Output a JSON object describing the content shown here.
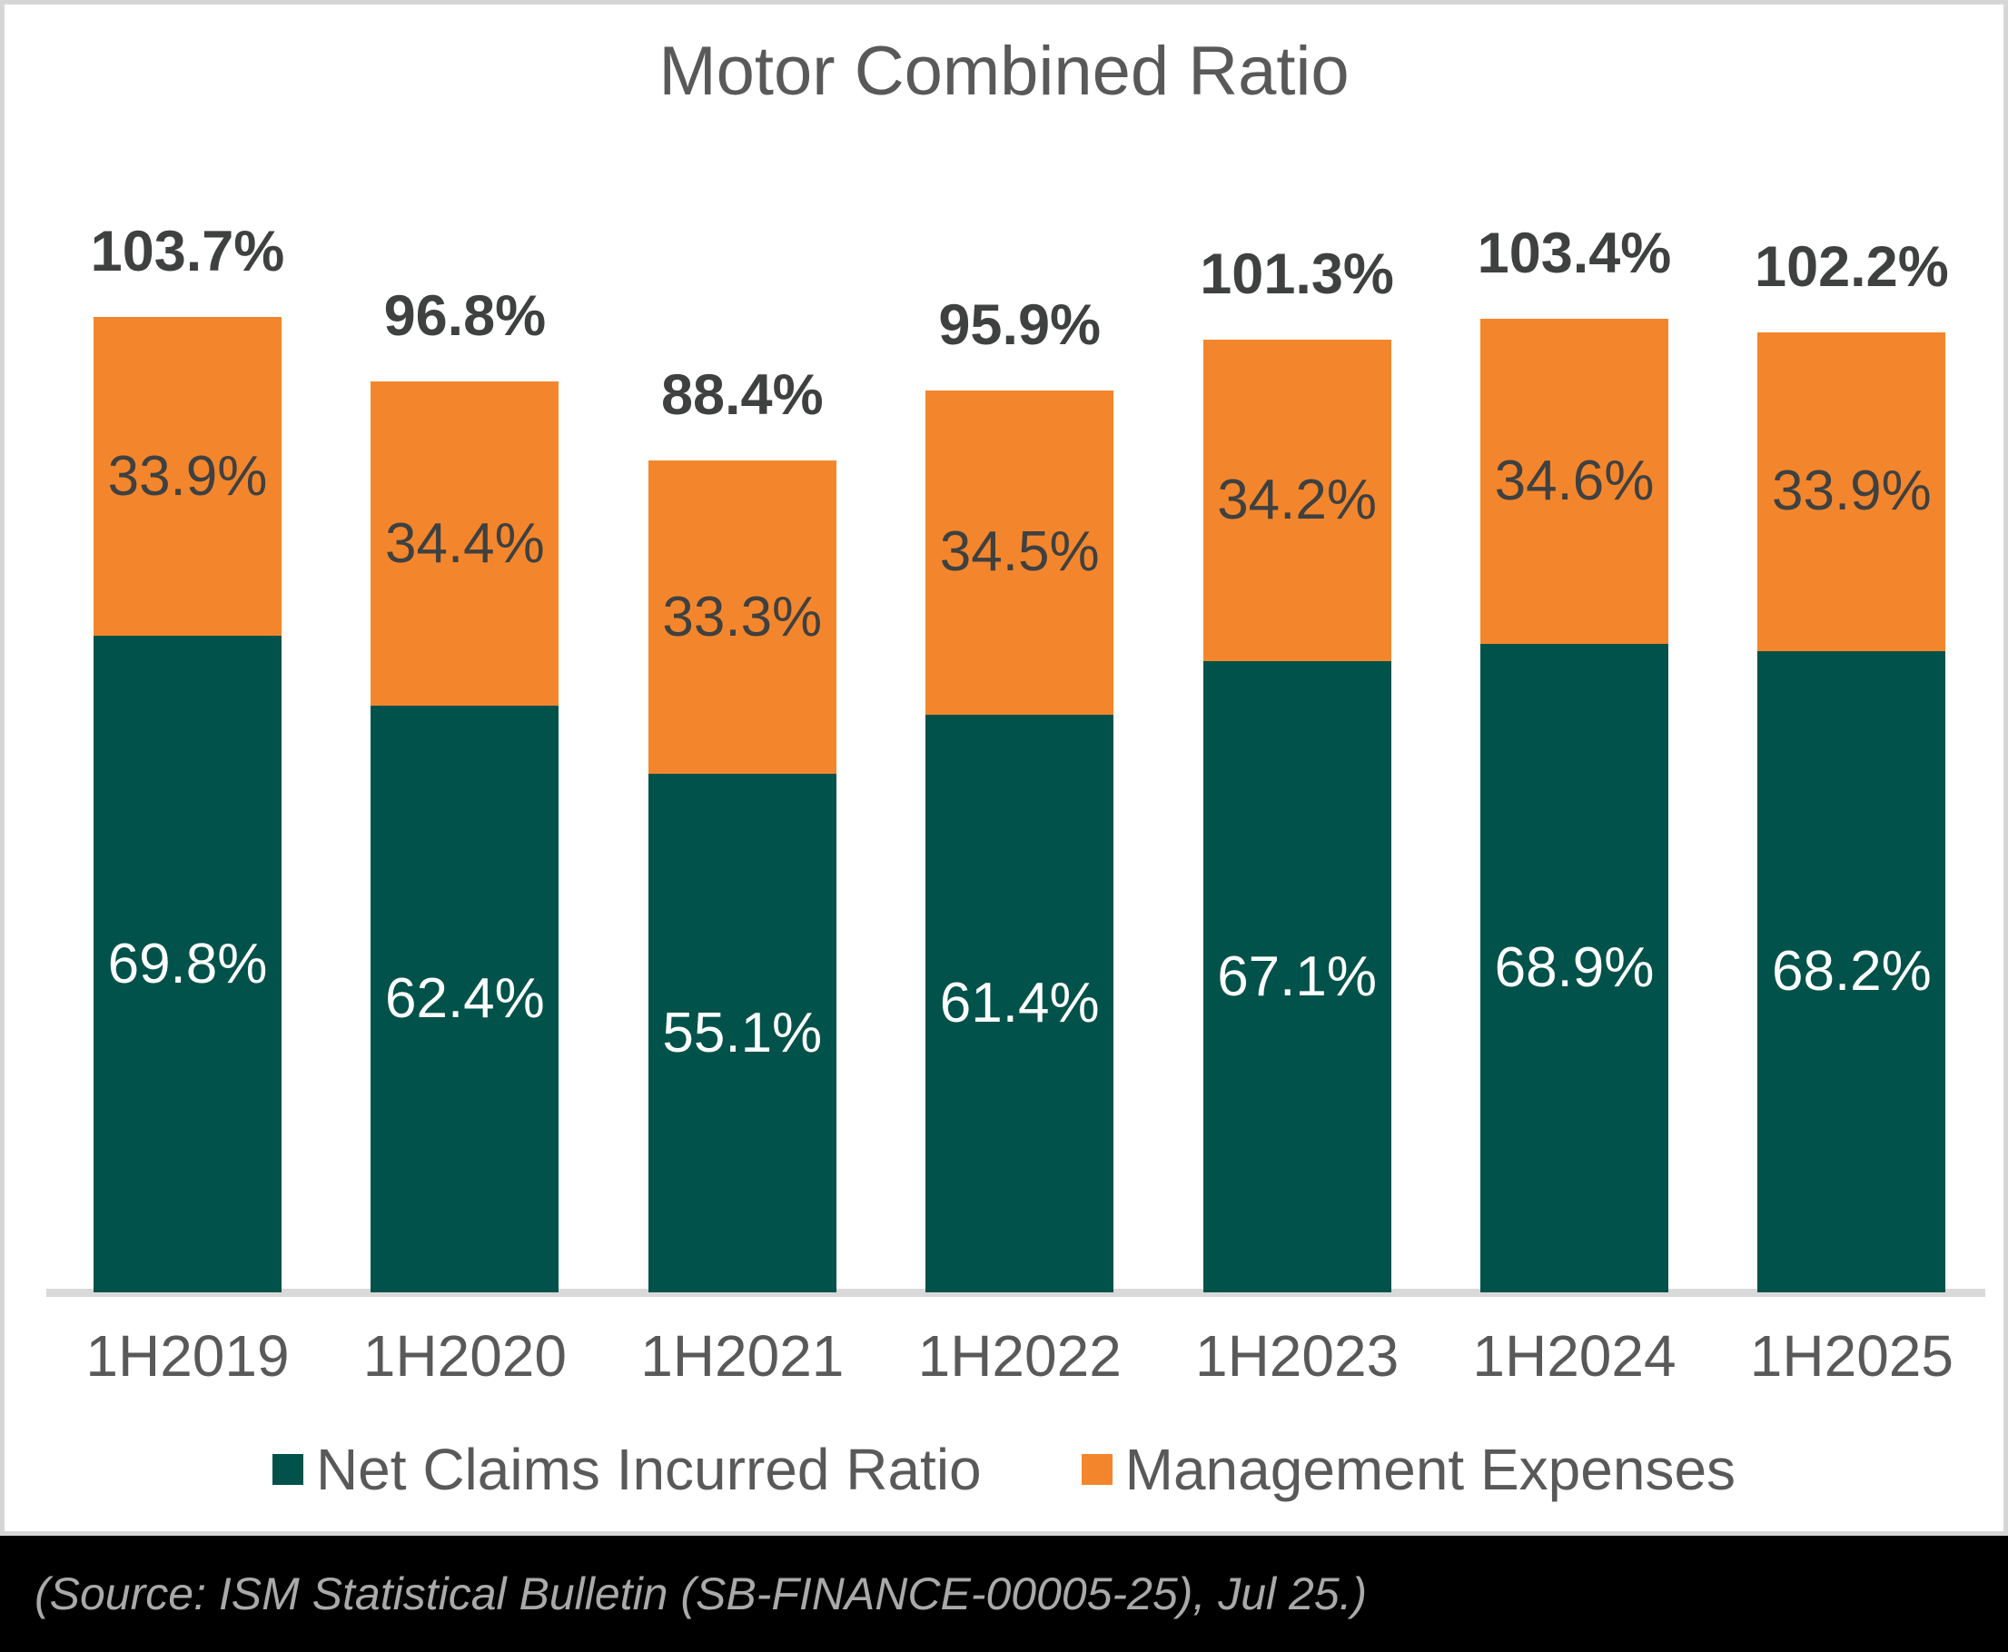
{
  "chart_data": {
    "type": "bar",
    "variant": "stacked-column",
    "title": "Motor Combined Ratio",
    "categories": [
      "1H2019",
      "1H2020",
      "1H2021",
      "1H2022",
      "1H2023",
      "1H2024",
      "1H2025"
    ],
    "series": [
      {
        "name": "Net Claims Incurred Ratio",
        "color": "#00524A",
        "values": [
          69.8,
          62.4,
          55.1,
          61.4,
          67.1,
          68.9,
          68.2
        ],
        "labels": [
          "69.8%",
          "62.4%",
          "55.1%",
          "61.4%",
          "67.1%",
          "68.9%",
          "68.2%"
        ]
      },
      {
        "name": "Management Expenses",
        "color": "#F3862C",
        "values": [
          33.9,
          34.4,
          33.3,
          34.5,
          34.2,
          34.6,
          33.9
        ],
        "labels": [
          "33.9%",
          "34.4%",
          "33.3%",
          "34.5%",
          "34.2%",
          "34.6%",
          "33.9%"
        ]
      }
    ],
    "totals": {
      "values": [
        103.7,
        96.8,
        88.4,
        95.9,
        101.3,
        103.4,
        102.2
      ],
      "labels": [
        "103.7%",
        "96.8%",
        "88.4%",
        "95.9%",
        "101.3%",
        "103.4%",
        "102.2%"
      ]
    },
    "ylim": [
      0,
      110
    ],
    "gridlines": false,
    "legend_position": "bottom",
    "axis_line_color": "#D9D9D9",
    "title_color": "#595959",
    "total_label_color": "#3F4040",
    "claims_value_label_color": "#FFFFFF",
    "expenses_value_label_color": "#3F4040"
  },
  "source_bar": {
    "text": "(Source: ISM Statistical Bulletin (SB-FINANCE-00005-25), Jul 25.)"
  }
}
